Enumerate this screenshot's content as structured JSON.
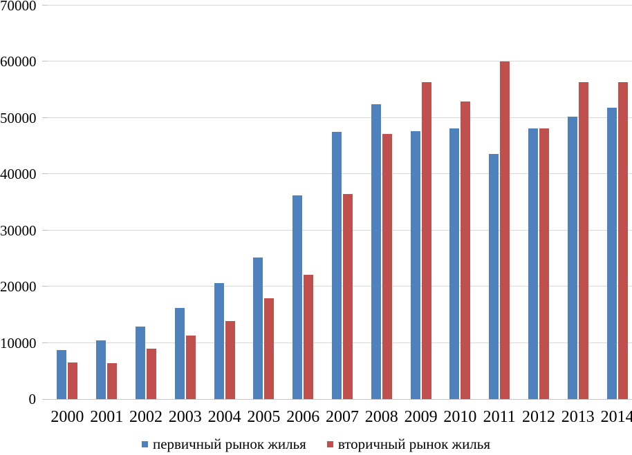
{
  "chart_data": {
    "type": "bar",
    "title": "",
    "xlabel": "",
    "ylabel": "",
    "categories": [
      "2000",
      "2001",
      "2002",
      "2003",
      "2004",
      "2005",
      "2006",
      "2007",
      "2008",
      "2009",
      "2010",
      "2011",
      "2012",
      "2013",
      "2014"
    ],
    "series": [
      {
        "name": "первичный рынок жилья",
        "color": "#4F81BD",
        "values": [
          8700,
          10400,
          12900,
          16200,
          20600,
          25200,
          36200,
          47500,
          52500,
          47700,
          48100,
          43600,
          48100,
          50200,
          51800
        ]
      },
      {
        "name": "вторичный рынок жилья",
        "color": "#C0504D",
        "values": [
          6500,
          6400,
          9000,
          11300,
          13900,
          17900,
          22100,
          36500,
          47200,
          56400,
          52900,
          60000,
          48200,
          56400,
          56400
        ]
      }
    ],
    "ylim": [
      0,
      70000
    ],
    "ytick_step": 10000,
    "yticks": [
      "0",
      "10000",
      "20000",
      "30000",
      "40000",
      "50000",
      "60000",
      "70000"
    ],
    "grid": true,
    "legend_position": "bottom",
    "colors": {
      "gridline": "#D9D9D9",
      "axis_line": "#C6C6C6",
      "tick": "#BFBFBF",
      "text": "#000000",
      "background": "#FFFFFF"
    }
  }
}
